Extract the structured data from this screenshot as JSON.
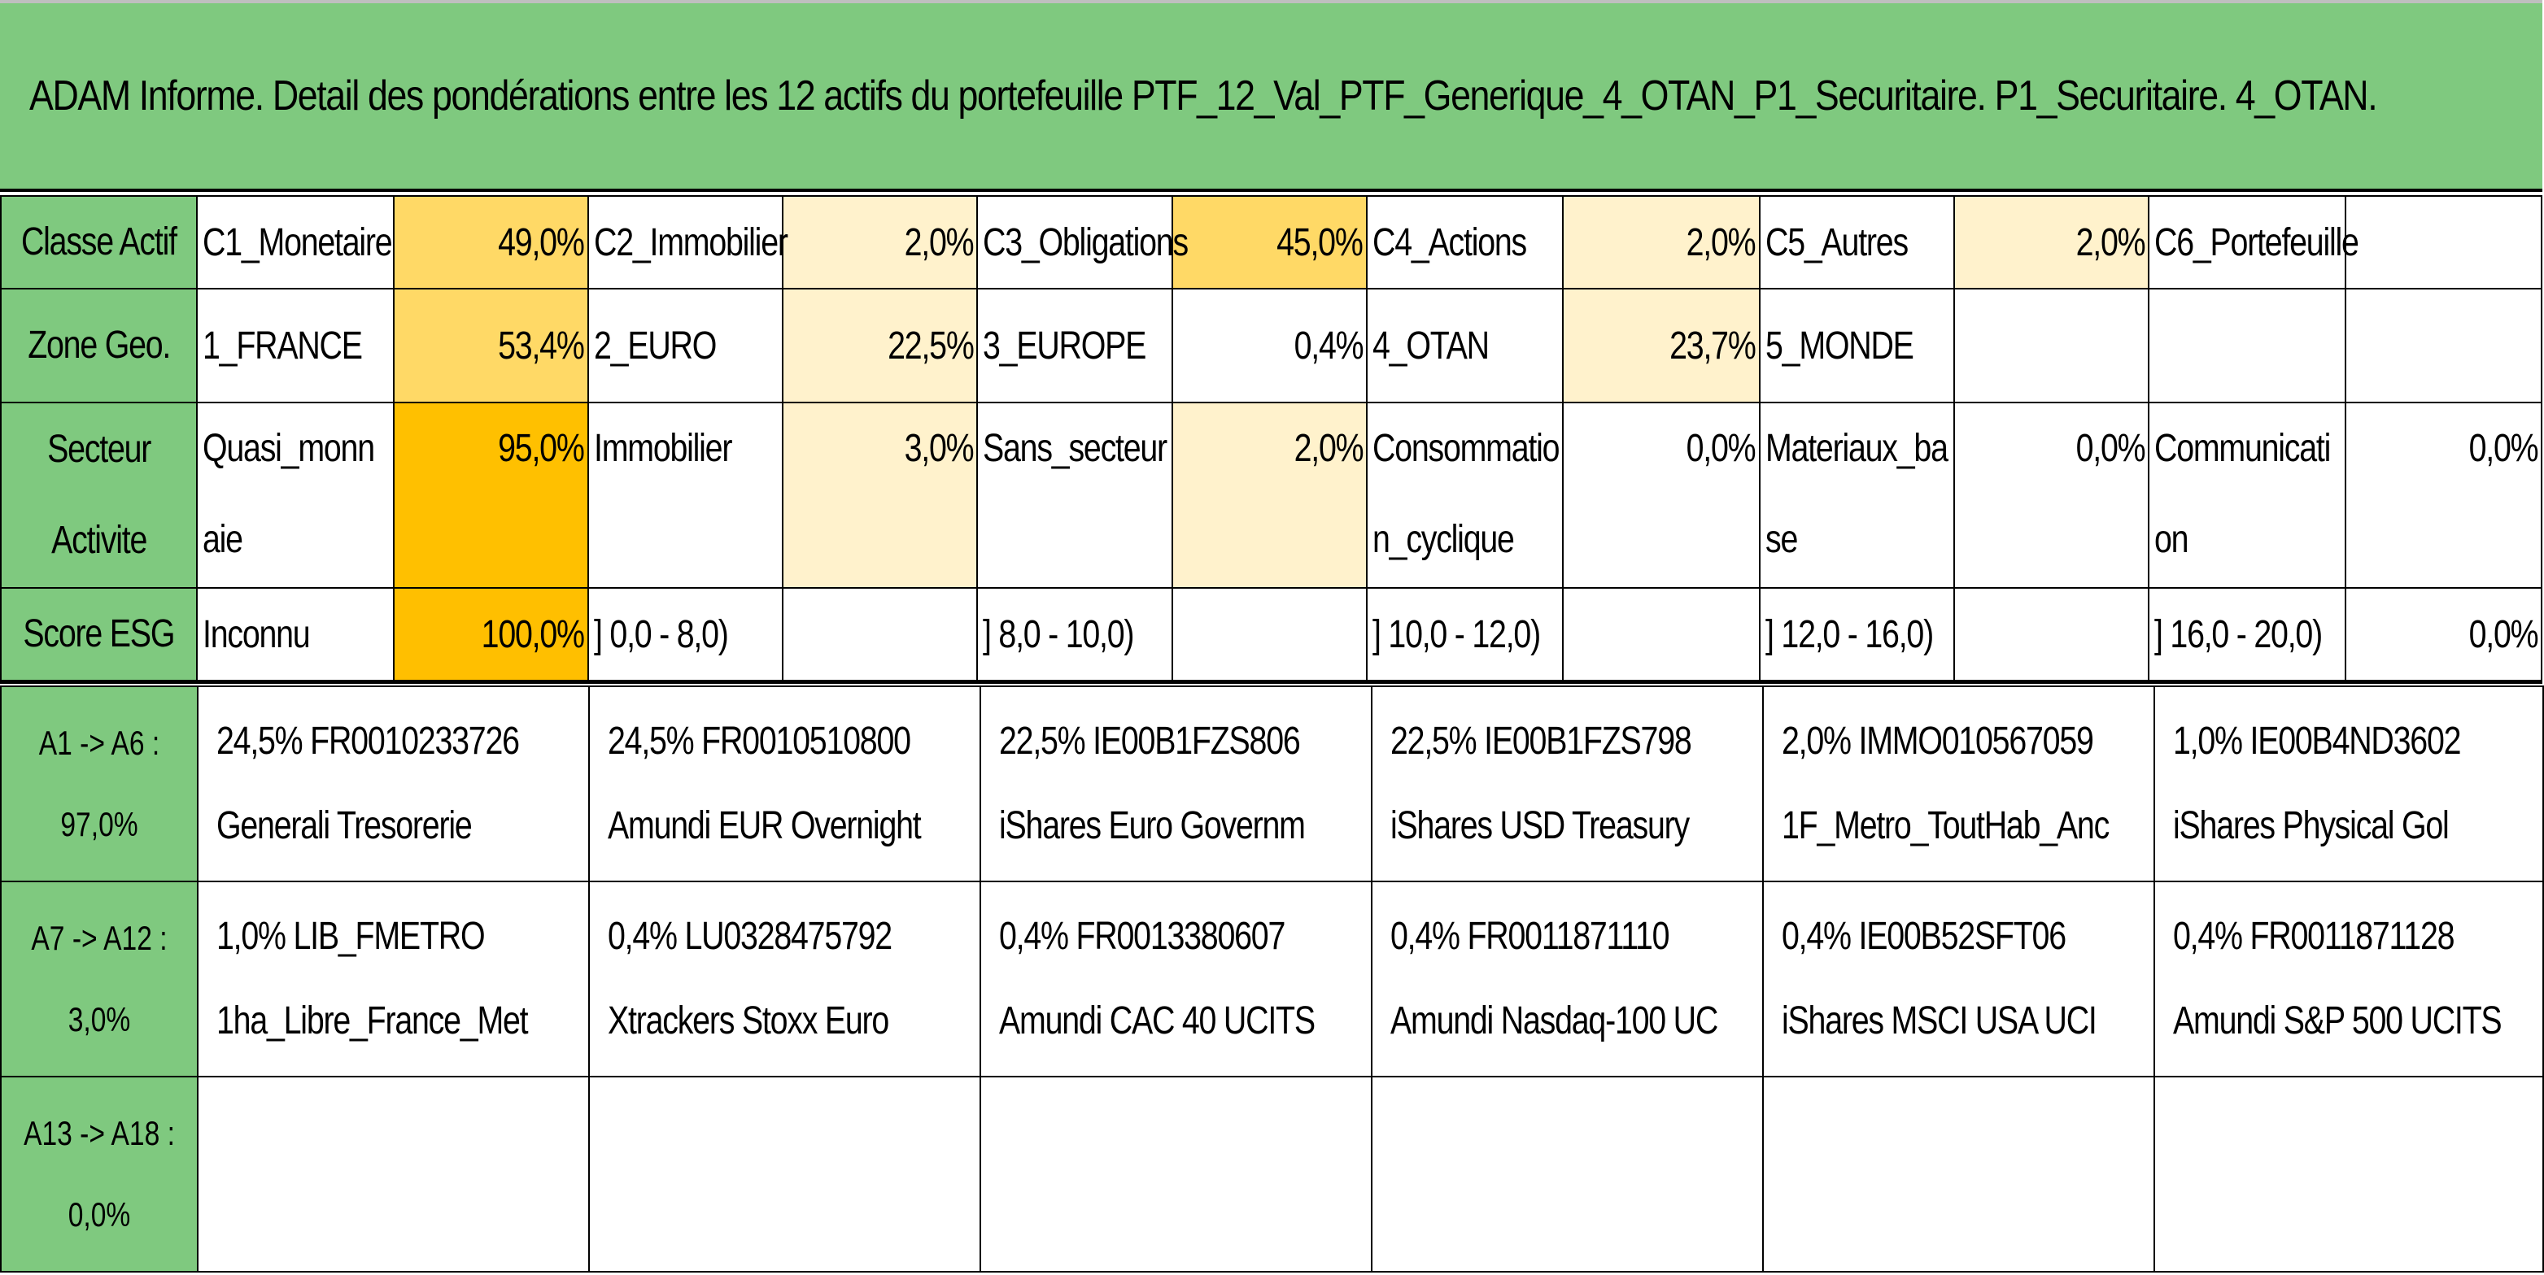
{
  "title": "ADAM Informe. Detail des pondérations entre les 12 actifs du portefeuille PTF_12_Val_PTF_Generique_4_OTAN_P1_Securitaire. P1_Securitaire. 4_OTAN.",
  "colors": {
    "header_green": "#7fc97f",
    "heat_low": "#fff2cc",
    "heat_mid": "#ffd966",
    "heat_high": "#ffc000",
    "heat_max": "#ffbf00"
  },
  "rows": [
    {
      "header": "Classe Actif",
      "cells": [
        {
          "label": "C1_Monetaire",
          "value": "49,0%"
        },
        {
          "label": "C2_Immobilier",
          "value": "2,0%"
        },
        {
          "label": "C3_Obligations",
          "value": "45,0%"
        },
        {
          "label": "C4_Actions",
          "value": "2,0%"
        },
        {
          "label": "C5_Autres",
          "value": "2,0%"
        },
        {
          "label": "C6_Portefeuille",
          "value": ""
        }
      ]
    },
    {
      "header": "Zone Geo.",
      "cells": [
        {
          "label": "1_FRANCE",
          "value": "53,4%"
        },
        {
          "label": "2_EURO",
          "value": "22,5%"
        },
        {
          "label": "3_EUROPE",
          "value": "0,4%"
        },
        {
          "label": "4_OTAN",
          "value": "23,7%"
        },
        {
          "label": "5_MONDE",
          "value": ""
        },
        {
          "label": "",
          "value": ""
        }
      ]
    },
    {
      "header": "Secteur Activite",
      "cells": [
        {
          "label": "Quasi_monnaie",
          "value": "95,0%"
        },
        {
          "label": "Immobilier",
          "value": "3,0%"
        },
        {
          "label": "Sans_secteur",
          "value": "2,0%"
        },
        {
          "label": "Consommation_cyclique",
          "value": "0,0%"
        },
        {
          "label": "Materiaux_base",
          "value": "0,0%"
        },
        {
          "label": "Communication",
          "value": "0,0%"
        }
      ]
    },
    {
      "header": "Score ESG",
      "cells": [
        {
          "label": "Inconnu",
          "value": "100,0%"
        },
        {
          "label": "] 0,0 - 8,0)",
          "value": ""
        },
        {
          "label": "] 8,0 - 10,0)",
          "value": ""
        },
        {
          "label": "] 10,0 - 12,0)",
          "value": ""
        },
        {
          "label": "] 12,0 - 16,0)",
          "value": ""
        },
        {
          "label": "] 16,0 - 20,0)",
          "value": "0,0%"
        }
      ]
    }
  ],
  "holdings": [
    {
      "header": "A1 -> A6 : 97,0%",
      "items": [
        {
          "line1": "24,5% FR0010233726",
          "line2": "Generali Tresorerie"
        },
        {
          "line1": "24,5% FR0010510800",
          "line2": "Amundi EUR Overnight"
        },
        {
          "line1": "22,5% IE00B1FZS806",
          "line2": "iShares Euro Governm"
        },
        {
          "line1": "22,5% IE00B1FZS798",
          "line2": "iShares USD Treasury"
        },
        {
          "line1": "2,0% IMMO010567059",
          "line2": "1F_Metro_ToutHab_Anc"
        },
        {
          "line1": "1,0% IE00B4ND3602",
          "line2": "iShares Physical Gol"
        }
      ]
    },
    {
      "header": "A7 -> A12 : 3,0%",
      "items": [
        {
          "line1": "1,0% LIB_FMETRO",
          "line2": "1ha_Libre_France_Met"
        },
        {
          "line1": "0,4% LU0328475792",
          "line2": "Xtrackers Stoxx Euro"
        },
        {
          "line1": "0,4% FR0013380607",
          "line2": "Amundi CAC 40 UCITS"
        },
        {
          "line1": "0,4% FR0011871110",
          "line2": "Amundi Nasdaq-100 UC"
        },
        {
          "line1": "0,4% IE00B52SFT06",
          "line2": "iShares MSCI USA UCI"
        },
        {
          "line1": "0,4% FR0011871128",
          "line2": "Amundi S&P 500 UCITS"
        }
      ]
    },
    {
      "header": "A13 -> A18 : 0,0%",
      "items": [
        {
          "line1": "",
          "line2": ""
        },
        {
          "line1": "",
          "line2": ""
        },
        {
          "line1": "",
          "line2": ""
        },
        {
          "line1": "",
          "line2": ""
        },
        {
          "line1": "",
          "line2": ""
        },
        {
          "line1": "",
          "line2": ""
        }
      ]
    }
  ]
}
